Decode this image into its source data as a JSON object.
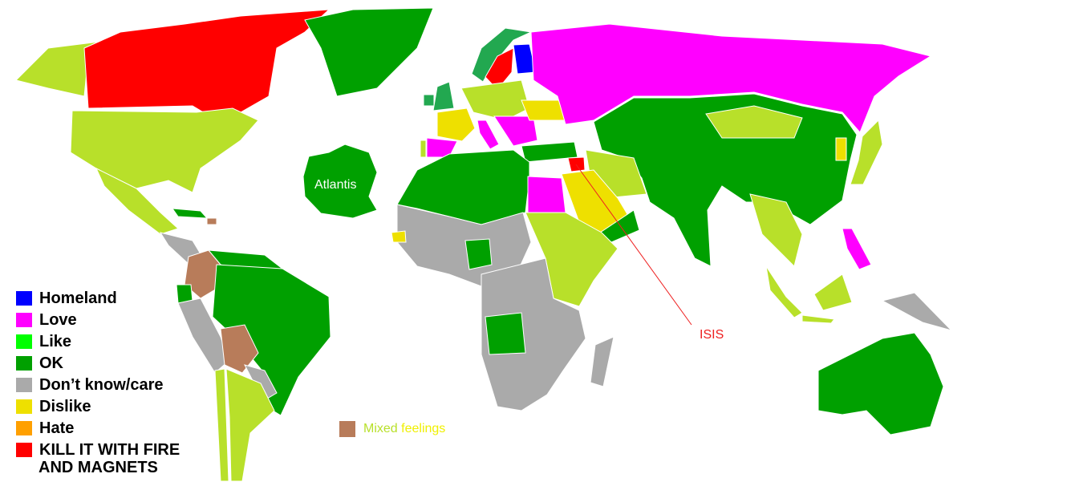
{
  "legend": {
    "items": [
      {
        "label": "Homeland",
        "color": "#0000ff"
      },
      {
        "label": "Love",
        "color": "#ff00ff"
      },
      {
        "label": "Like",
        "color": "#00ff00"
      },
      {
        "label": "OK",
        "color": "#00a000"
      },
      {
        "label": "Don’t know/care",
        "color": "#aaaaaa"
      },
      {
        "label": "Dislike",
        "color": "#eee000"
      },
      {
        "label": "Hate",
        "color": "#ffa000"
      },
      {
        "label": "KILL IT WITH FIRE",
        "color": "#ff0000"
      }
    ],
    "last_line": "AND MAGNETS",
    "mixed": {
      "word1": "Mixed",
      "word2": "feelings",
      "color": "#b87c5a",
      "word1_color": "#b8e02a",
      "word2_color": "#f0f000"
    }
  },
  "colors": {
    "lime": "#b8e02a",
    "ok": "#00a000",
    "love": "#ff00ff",
    "homeland": "#0000ff",
    "kill": "#ff0000",
    "dislike": "#eee000",
    "gray": "#aaaaaa",
    "mixed": "#b87c5a",
    "annotation": "#ee2020"
  },
  "map": {
    "atlantis_label": "Atlantis",
    "isis_label": "ISIS"
  }
}
